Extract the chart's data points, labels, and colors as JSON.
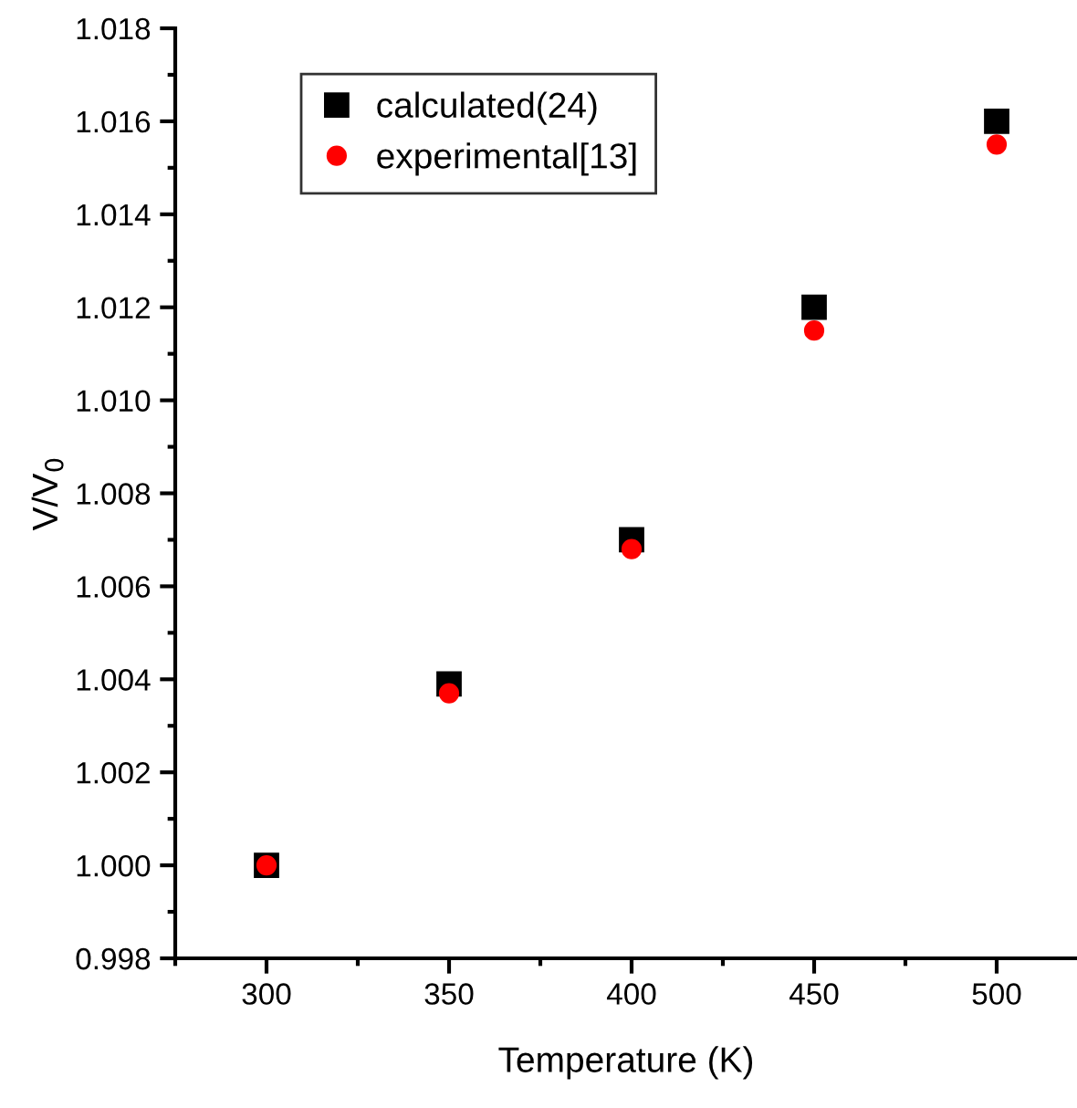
{
  "chart_data": {
    "type": "scatter",
    "xlabel": "Temperature (K)",
    "ylabel": "V/V$_{0}$",
    "x": [
      300,
      350,
      400,
      450,
      500
    ],
    "series": [
      {
        "name": "calculated(24)",
        "color": "#000000",
        "marker": "square",
        "values": [
          1.0,
          1.0039,
          1.007,
          1.012,
          1.016
        ]
      },
      {
        "name": "experimental[13]",
        "color": "#ff0000",
        "marker": "circle",
        "values": [
          1.0,
          1.0037,
          1.0068,
          1.0115,
          1.0155
        ]
      }
    ],
    "xlim": [
      275,
      522
    ],
    "xticks": [
      300,
      350,
      400,
      450,
      500
    ],
    "ylim": [
      0.998,
      1.018
    ],
    "yticks": [
      {
        "value": 0.998,
        "label": "0.998"
      },
      {
        "value": 1.0,
        "label": "1.000"
      },
      {
        "value": 1.002,
        "label": "1.002"
      },
      {
        "value": 1.004,
        "label": "1.004"
      },
      {
        "value": 1.006,
        "label": "1.006"
      },
      {
        "value": 1.008,
        "label": "1.008"
      },
      {
        "value": 1.01,
        "label": "1.010"
      },
      {
        "value": 1.012,
        "label": "1.012"
      },
      {
        "value": 1.014,
        "label": "1.014"
      },
      {
        "value": 1.016,
        "label": "1.016"
      },
      {
        "value": 1.018,
        "label": "1.018"
      }
    ],
    "grid": false,
    "legend": "top left"
  }
}
